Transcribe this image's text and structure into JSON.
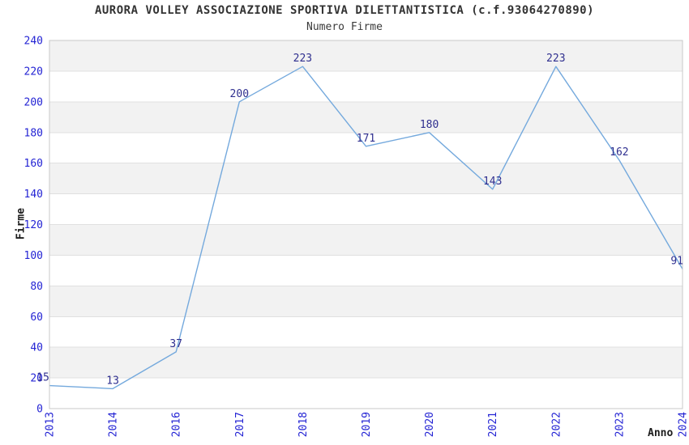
{
  "chart_data": {
    "type": "line",
    "title": "AURORA VOLLEY ASSOCIAZIONE SPORTIVA DILETTANTISTICA (c.f.93064270890)",
    "subtitle": "Numero Firme",
    "xlabel": "Anno",
    "ylabel": "Firme",
    "categories": [
      "2013",
      "2014",
      "2016",
      "2017",
      "2018",
      "2019",
      "2020",
      "2021",
      "2022",
      "2023",
      "2024"
    ],
    "values": [
      15,
      13,
      37,
      200,
      223,
      171,
      180,
      143,
      223,
      162,
      91
    ],
    "ylim": [
      0,
      240
    ],
    "yticks": [
      0,
      20,
      40,
      60,
      80,
      100,
      120,
      140,
      160,
      180,
      200,
      220,
      240
    ],
    "grid": true,
    "banded_background": true,
    "legend": "none",
    "colors": {
      "line": "#74a9dd",
      "tick_label": "#2424d4",
      "data_label": "#2f2f8f",
      "band": "#f2f2f2",
      "grid": "#e0e0e0",
      "border": "#c8c8c8",
      "background": "#ffffff"
    }
  }
}
